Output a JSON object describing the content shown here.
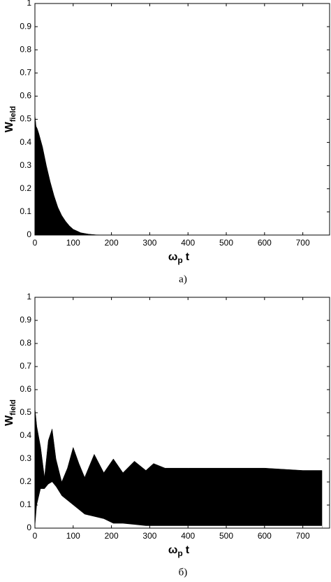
{
  "chart_data": [
    {
      "type": "area",
      "caption": "а)",
      "ylabel": "W",
      "ylabel_sub": "field",
      "xlabel": "ω",
      "xlabel_sub": "p",
      "xlabel_tail": "t",
      "color": "#000000",
      "x": [
        0,
        3,
        6,
        10,
        20,
        30,
        40,
        50,
        60,
        70,
        80,
        90,
        100,
        120,
        140,
        160,
        200,
        750
      ],
      "values": [
        0.52,
        0.47,
        0.46,
        0.44,
        0.38,
        0.3,
        0.23,
        0.17,
        0.12,
        0.085,
        0.06,
        0.04,
        0.025,
        0.01,
        0.004,
        0.001,
        0,
        0
      ],
      "lower": [
        0,
        0,
        0,
        0,
        0,
        0,
        0,
        0,
        0,
        0,
        0,
        0,
        0,
        0,
        0,
        0,
        0,
        0
      ],
      "xlim": [
        0,
        770
      ],
      "ylim": [
        0,
        1
      ],
      "xticks": [
        0,
        100,
        200,
        300,
        400,
        500,
        600,
        700
      ],
      "yticks": [
        0,
        0.1,
        0.2,
        0.3,
        0.4,
        0.5,
        0.6,
        0.7,
        0.8,
        0.9,
        1
      ]
    },
    {
      "type": "area",
      "caption": "б)",
      "ylabel": "W",
      "ylabel_sub": "field",
      "xlabel": "ω",
      "xlabel_sub": "p",
      "xlabel_tail": "t",
      "color": "#000000",
      "x": [
        0,
        5,
        15,
        25,
        35,
        45,
        55,
        70,
        85,
        100,
        115,
        130,
        155,
        180,
        205,
        230,
        260,
        290,
        310,
        340,
        400,
        500,
        600,
        700,
        750
      ],
      "values": [
        0.52,
        0.44,
        0.35,
        0.22,
        0.38,
        0.43,
        0.3,
        0.2,
        0.26,
        0.35,
        0.28,
        0.22,
        0.32,
        0.24,
        0.3,
        0.24,
        0.29,
        0.25,
        0.28,
        0.26,
        0.26,
        0.26,
        0.26,
        0.25,
        0.25
      ],
      "lower": [
        0,
        0.1,
        0.17,
        0.17,
        0.19,
        0.2,
        0.18,
        0.14,
        0.12,
        0.1,
        0.08,
        0.06,
        0.05,
        0.04,
        0.02,
        0.02,
        0.015,
        0.01,
        0.01,
        0.01,
        0.01,
        0.01,
        0.01,
        0.01,
        0.01
      ],
      "xlim": [
        0,
        770
      ],
      "ylim": [
        0,
        1
      ],
      "xticks": [
        0,
        100,
        200,
        300,
        400,
        500,
        600,
        700
      ],
      "yticks": [
        0,
        0.1,
        0.2,
        0.3,
        0.4,
        0.5,
        0.6,
        0.7,
        0.8,
        0.9,
        1
      ]
    }
  ]
}
